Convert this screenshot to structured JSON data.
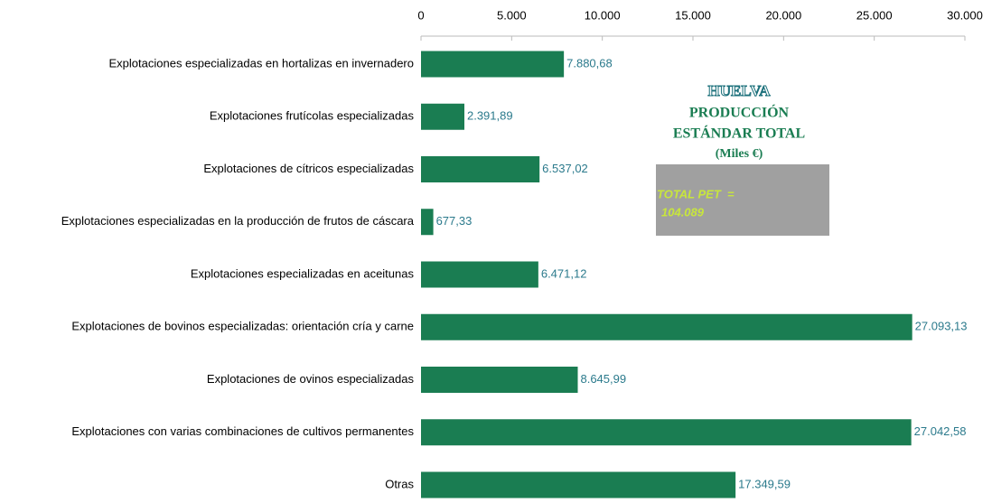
{
  "chart_data": {
    "type": "bar",
    "orientation": "horizontal",
    "categories": [
      "Explotaciones especializadas en hortalizas en invernadero",
      "Explotaciones frutícolas especializadas",
      "Explotaciones de cítricos especializadas",
      "Explotaciones especializadas en la producción de frutos de cáscara",
      "Explotaciones especializadas en aceitunas",
      "Explotaciones de bovinos especializadas: orientación cría y carne",
      "Explotaciones de ovinos especializadas",
      "Explotaciones con varias combinaciones de cultivos permanentes",
      "Otras"
    ],
    "values": [
      7880.68,
      2391.89,
      6537.02,
      677.33,
      6471.12,
      27093.13,
      8645.99,
      27042.58,
      17349.59
    ],
    "value_labels": [
      "7.880,68",
      "2.391,89",
      "6.537,02",
      "677,33",
      "6.471,12",
      "27.093,13",
      "8.645,99",
      "27.042,58",
      "17.349,59"
    ],
    "color": "#1a7d52",
    "xlim": [
      0,
      30000
    ],
    "xticks": [
      0,
      {
        "value": 5000,
        "label": "5.000"
      },
      {
        "value": 10000,
        "label": "10.000"
      },
      {
        "value": 15000,
        "label": "15.000"
      },
      {
        "value": 20000,
        "label": "20.000"
      },
      {
        "value": 25000,
        "label": "25.000"
      },
      {
        "value": 30000,
        "label": "30.000"
      }
    ],
    "grid": false,
    "annotations": [
      "HUELVA",
      "PRODUCCIÓN",
      "ESTÁNDAR TOTAL",
      "(Miles €)",
      "TOTAL PET  =",
      "104.089"
    ]
  }
}
